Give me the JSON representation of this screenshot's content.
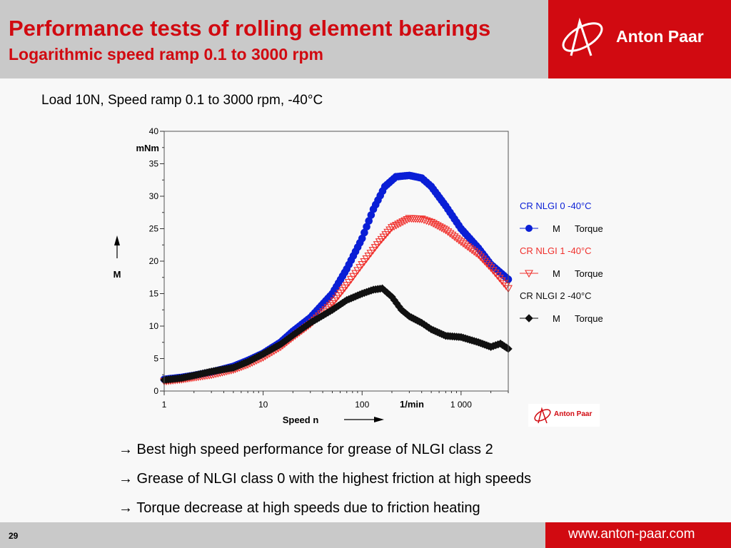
{
  "header": {
    "title": "Performance tests of rolling element bearings",
    "subtitle": "Logarithmic speed ramp 0.1 to 3000 rpm",
    "brand": "Anton Paar"
  },
  "caption": "Load 10N, Speed ramp 0.1 to 3000 rpm, -40°C",
  "bullets": [
    "→ Best high speed performance for grease of NLGI class 2",
    "→ Grease of NLGI class 0 with the highest friction at high speeds",
    "→ Torque decrease at high speeds due to friction heating"
  ],
  "footer": {
    "page": "29",
    "url": "www.anton-paar.com"
  },
  "colors": {
    "brand_red": "#d10a11",
    "series_blue": "#0a1fd6",
    "series_red": "#f0302c",
    "series_black": "#111111",
    "header_gray": "#c9c9c9"
  },
  "icons": {
    "logo": "anton-paar-logo-icon"
  },
  "chart_data": {
    "type": "scatter",
    "x_scale": "log",
    "xlim": [
      1,
      3000
    ],
    "ylim": [
      0,
      40
    ],
    "x_ticks": [
      1,
      10,
      100,
      1000
    ],
    "x_tick_labels": [
      "1",
      "10",
      "100",
      "1 000"
    ],
    "x_unit_label": "1/min",
    "y_ticks": [
      0,
      5,
      10,
      15,
      20,
      25,
      30,
      35,
      40
    ],
    "y_tick_labels": [
      "0",
      "5",
      "10",
      "15",
      "20",
      "25",
      "30",
      "35",
      "40"
    ],
    "y_unit_label": "mNm",
    "xlabel": "Speed n",
    "ylabel": "M",
    "grid": false,
    "legend_position": "right",
    "series": [
      {
        "group_label": "CR NLGI 0 -40°C",
        "symbol": "M",
        "name": "Torque",
        "marker": "circle",
        "color": "#0a1fd6",
        "points": [
          [
            1,
            1.8
          ],
          [
            1.5,
            2.1
          ],
          [
            2,
            2.4
          ],
          [
            3,
            2.9
          ],
          [
            5,
            3.8
          ],
          [
            7,
            4.7
          ],
          [
            10,
            5.8
          ],
          [
            15,
            7.5
          ],
          [
            20,
            9.2
          ],
          [
            30,
            11.3
          ],
          [
            50,
            15.0
          ],
          [
            70,
            18.8
          ],
          [
            100,
            23.5
          ],
          [
            130,
            28.0
          ],
          [
            170,
            31.5
          ],
          [
            220,
            33.0
          ],
          [
            300,
            33.2
          ],
          [
            400,
            32.8
          ],
          [
            500,
            31.5
          ],
          [
            700,
            28.5
          ],
          [
            1000,
            25.0
          ],
          [
            1500,
            22.0
          ],
          [
            2000,
            19.5
          ],
          [
            3000,
            17.2
          ]
        ]
      },
      {
        "group_label": "CR NLGI 1 -40°C",
        "symbol": "M",
        "name": "Torque",
        "marker": "triangle-down-open",
        "color": "#f0302c",
        "points": [
          [
            1,
            1.5
          ],
          [
            1.5,
            1.8
          ],
          [
            2,
            2.1
          ],
          [
            3,
            2.5
          ],
          [
            5,
            3.3
          ],
          [
            7,
            4.1
          ],
          [
            10,
            5.2
          ],
          [
            15,
            6.8
          ],
          [
            20,
            8.3
          ],
          [
            30,
            10.3
          ],
          [
            50,
            13.5
          ],
          [
            70,
            16.3
          ],
          [
            100,
            19.5
          ],
          [
            150,
            23.0
          ],
          [
            200,
            25.2
          ],
          [
            300,
            26.6
          ],
          [
            400,
            26.5
          ],
          [
            500,
            26.0
          ],
          [
            700,
            24.8
          ],
          [
            1000,
            23.0
          ],
          [
            1500,
            21.0
          ],
          [
            2000,
            19.0
          ],
          [
            3000,
            15.8
          ]
        ]
      },
      {
        "group_label": "CR NLGI 2 -40°C",
        "symbol": "M",
        "name": "Torque",
        "marker": "diamond",
        "color": "#111111",
        "points": [
          [
            1,
            1.7
          ],
          [
            1.5,
            2.0
          ],
          [
            2,
            2.4
          ],
          [
            3,
            3.0
          ],
          [
            5,
            3.6
          ],
          [
            7,
            4.5
          ],
          [
            10,
            5.7
          ],
          [
            15,
            7.2
          ],
          [
            20,
            8.6
          ],
          [
            30,
            10.5
          ],
          [
            50,
            12.5
          ],
          [
            70,
            14.0
          ],
          [
            100,
            15.0
          ],
          [
            130,
            15.6
          ],
          [
            160,
            15.8
          ],
          [
            200,
            14.5
          ],
          [
            250,
            12.5
          ],
          [
            300,
            11.5
          ],
          [
            400,
            10.5
          ],
          [
            500,
            9.5
          ],
          [
            700,
            8.5
          ],
          [
            1000,
            8.3
          ],
          [
            1500,
            7.5
          ],
          [
            2000,
            6.8
          ],
          [
            2500,
            7.3
          ],
          [
            3000,
            6.5
          ]
        ]
      }
    ]
  }
}
